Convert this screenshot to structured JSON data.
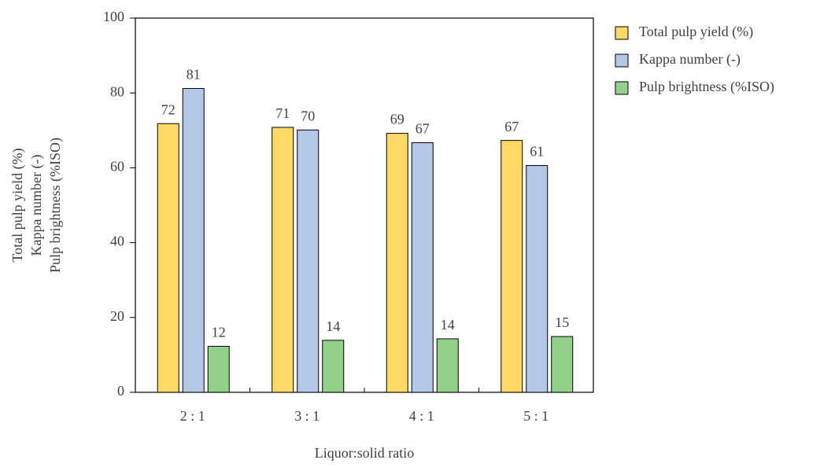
{
  "chart_data": {
    "type": "bar",
    "xlabel": "Liquor:solid ratio",
    "ylabel": [
      "Total pulp yield (%)",
      "Kappa number (-)",
      "Pulp brightness (%ISO)"
    ],
    "categories": [
      "2 : 1",
      "3 : 1",
      "4 : 1",
      "5 : 1"
    ],
    "series": [
      {
        "name": "Total pulp yield (%)",
        "color": "#ffd966",
        "values": [
          71.8,
          70.8,
          69.2,
          67.3
        ],
        "value_labels": [
          "72",
          "71",
          "69",
          "67"
        ]
      },
      {
        "name": "Kappa number (-)",
        "color": "#b4c7e7",
        "values": [
          81.2,
          70.1,
          66.7,
          60.6
        ],
        "value_labels": [
          "81",
          "70",
          "67",
          "61"
        ]
      },
      {
        "name": "Pulp brightness (%ISO)",
        "color": "#93d18b",
        "values": [
          12.3,
          13.9,
          14.3,
          14.9
        ],
        "value_labels": [
          "12",
          "14",
          "14",
          "15"
        ]
      }
    ],
    "ylim": [
      0,
      100
    ],
    "yticks": [
      0,
      20,
      40,
      60,
      80,
      100
    ],
    "grid": false,
    "legend": "right"
  }
}
